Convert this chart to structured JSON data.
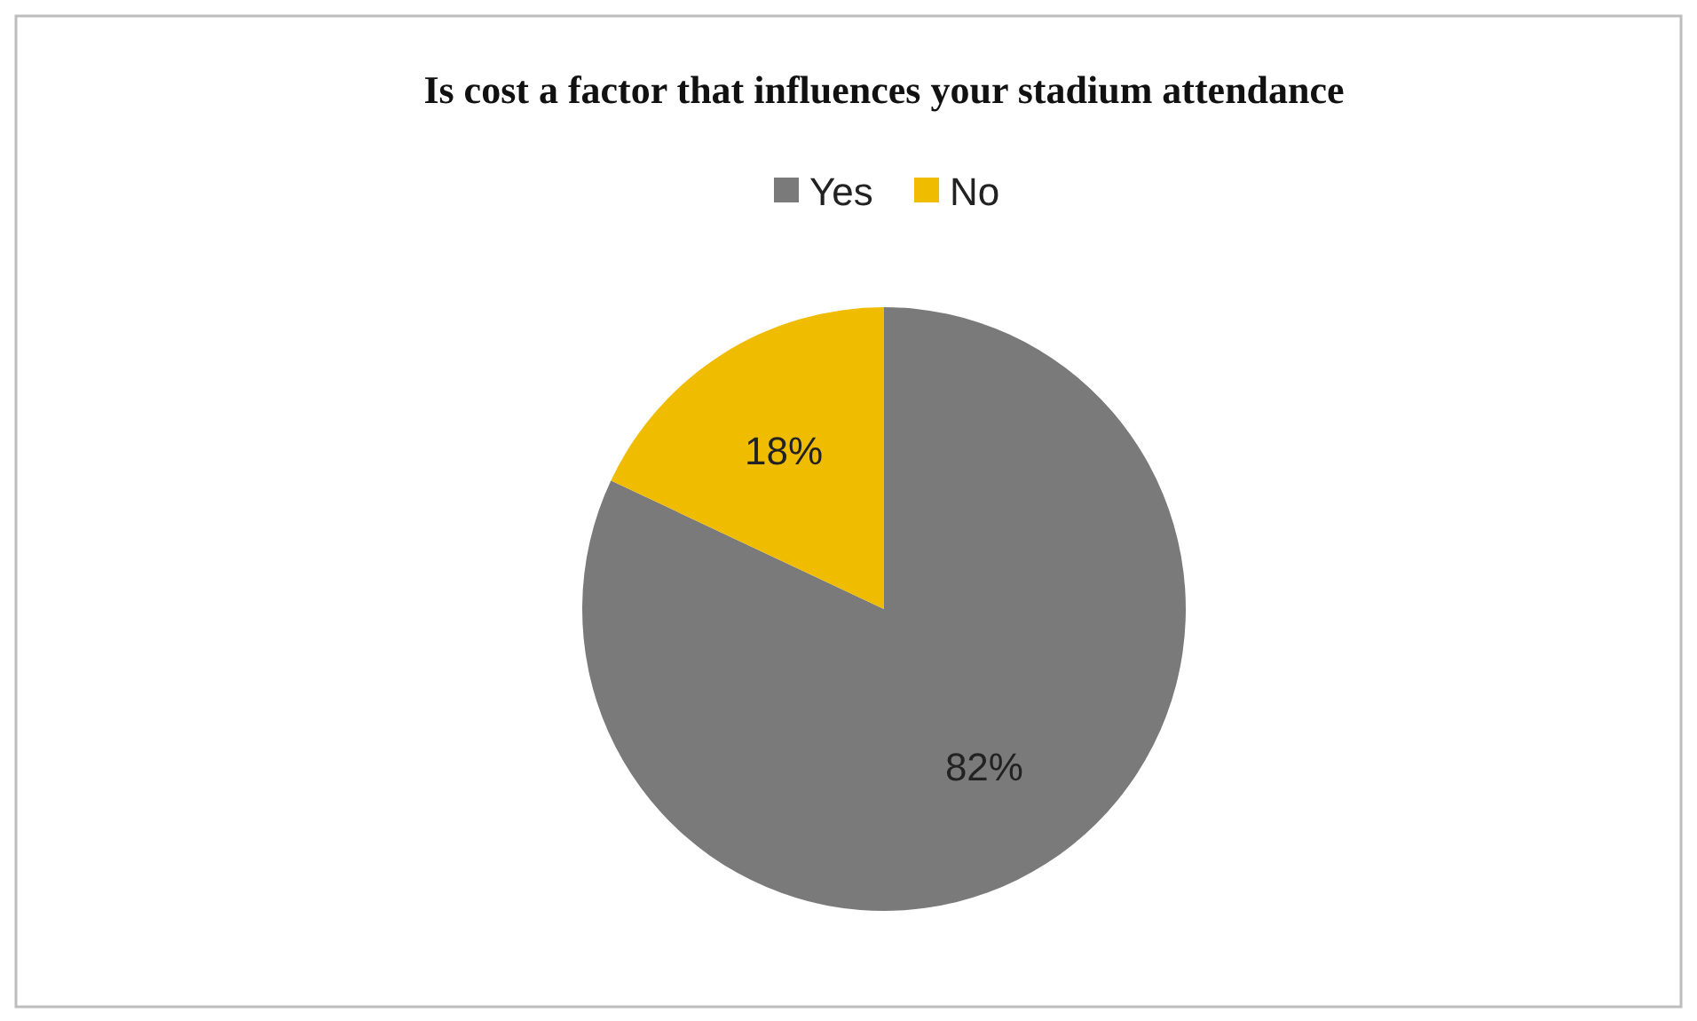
{
  "chart_data": {
    "type": "pie",
    "title": "Is cost a factor that influences your stadium attendance",
    "categories": [
      "Yes",
      "No"
    ],
    "values": [
      82,
      18
    ],
    "colors": [
      "#7a7a7a",
      "#f0bc00"
    ],
    "value_labels": [
      "82%",
      "18%"
    ],
    "legend": "top"
  }
}
